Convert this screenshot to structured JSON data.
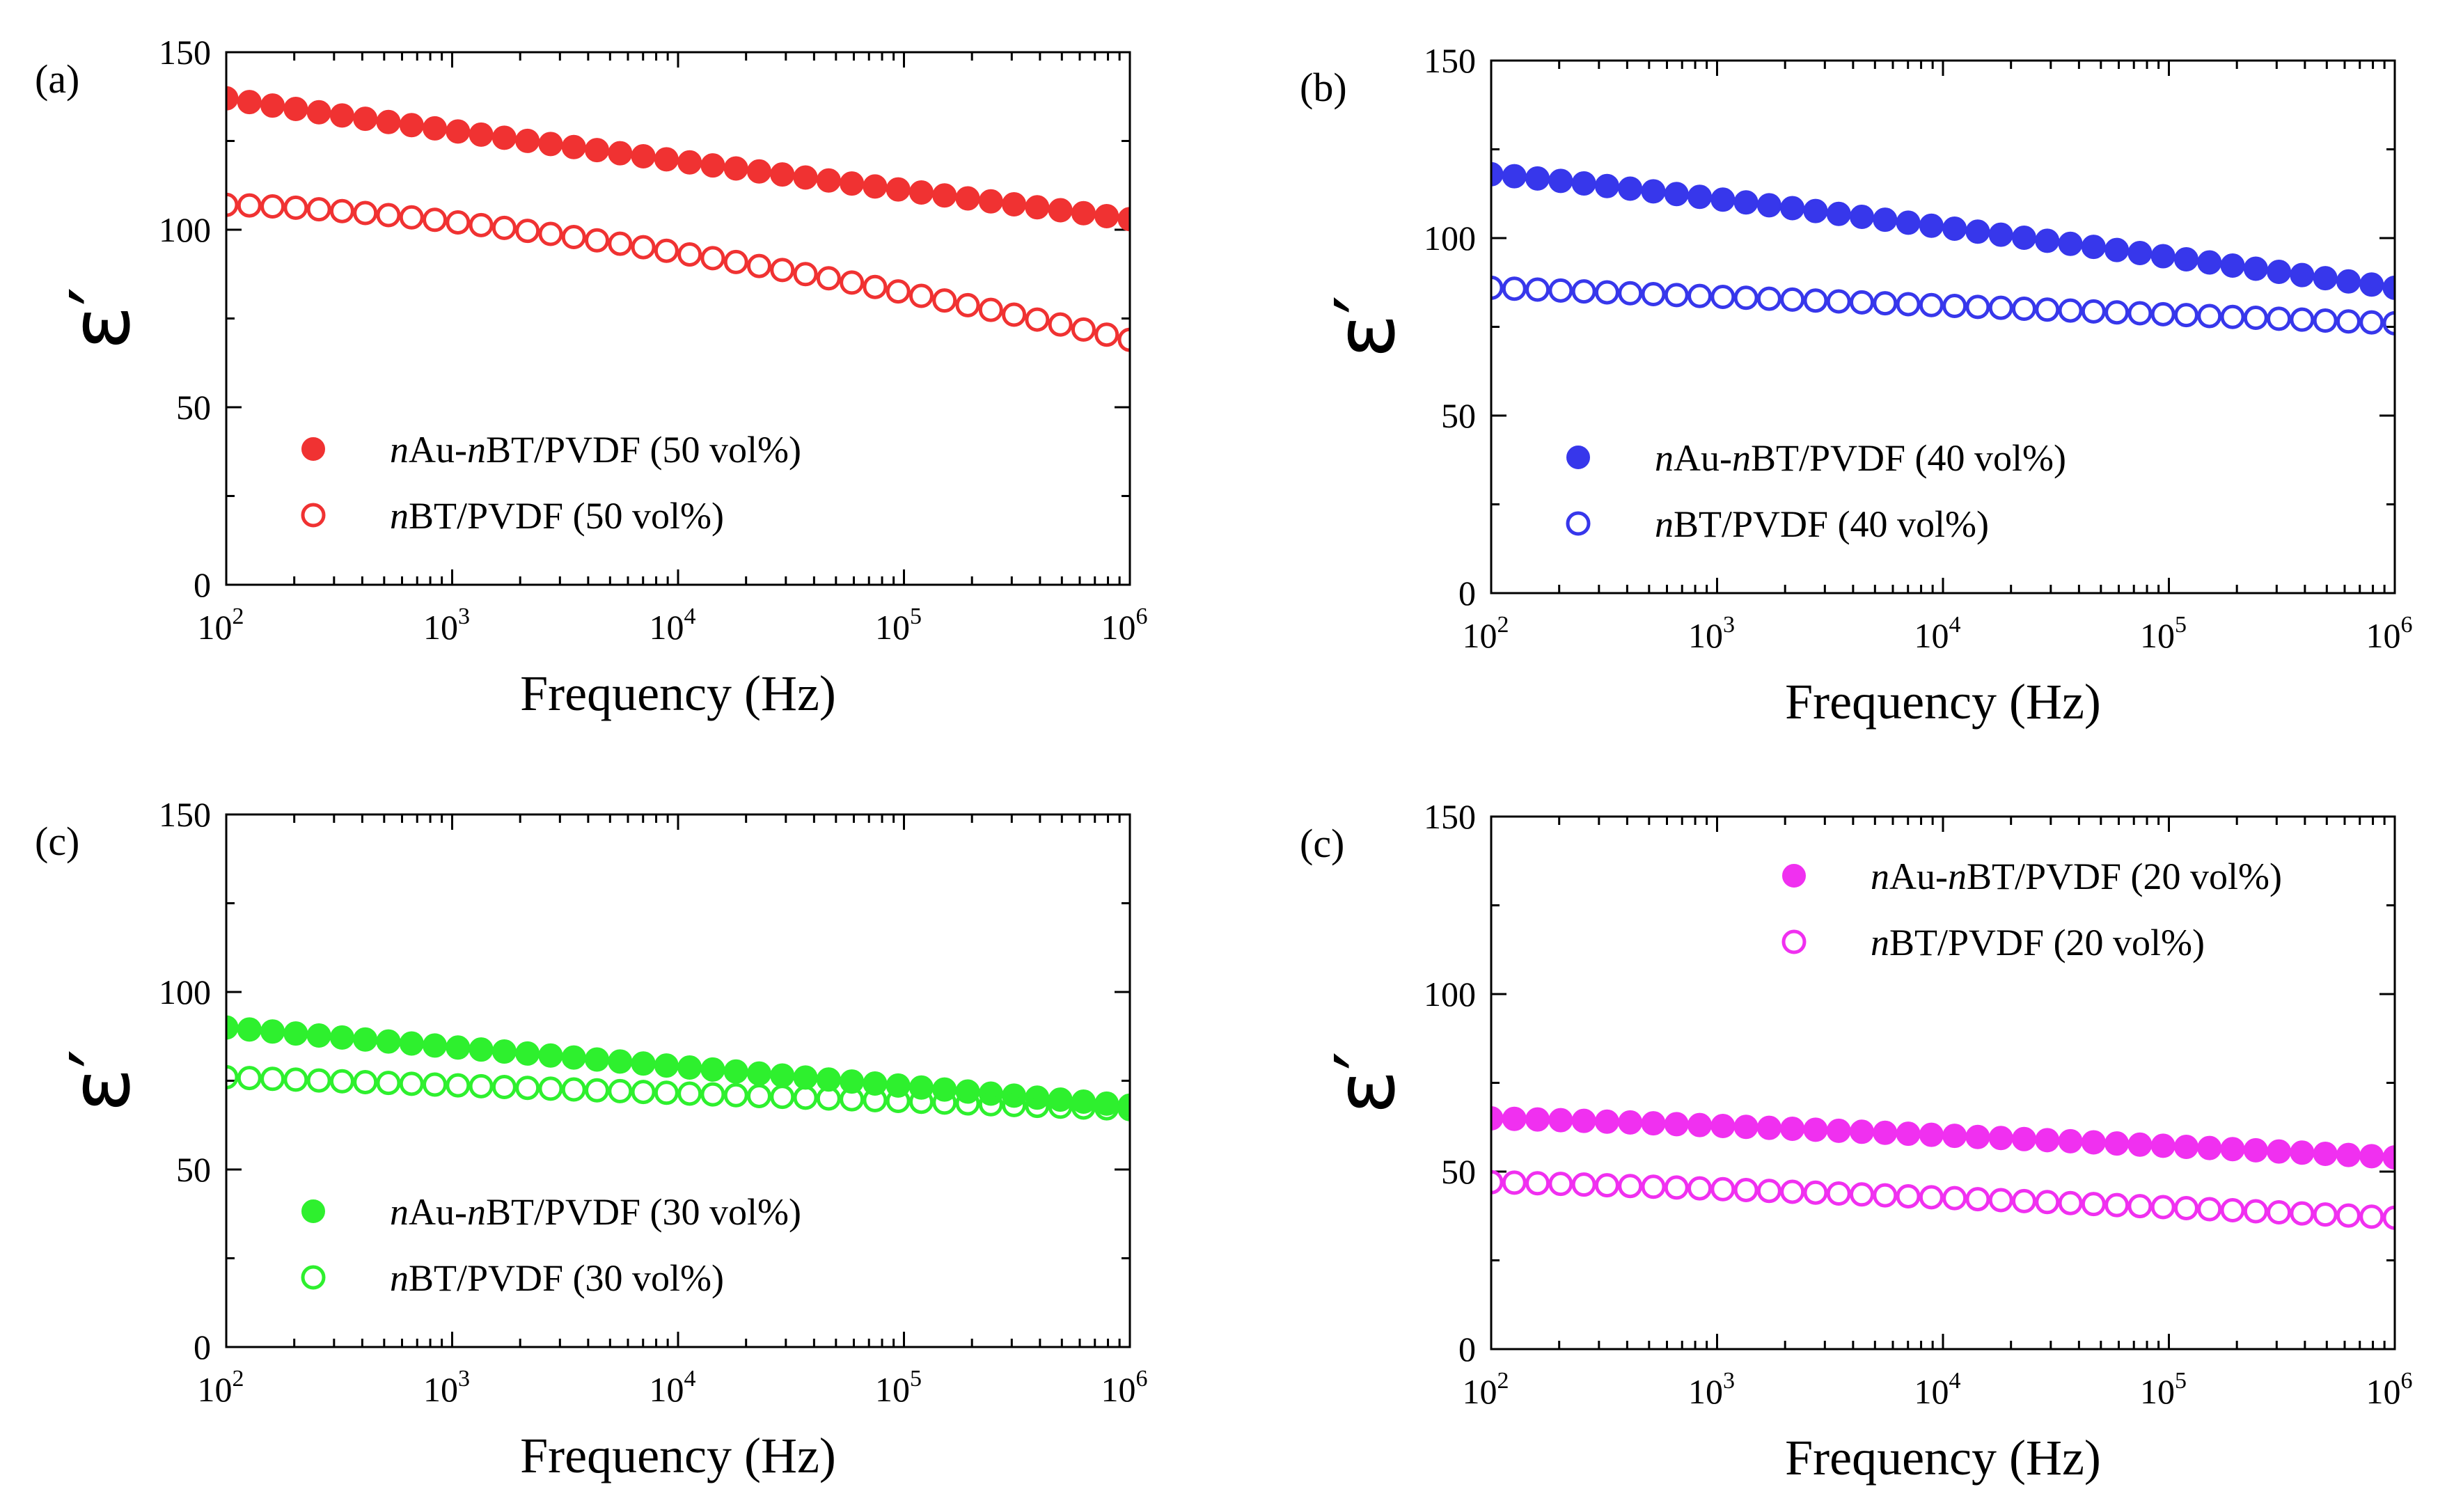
{
  "chart_data": [
    {
      "type": "scatter",
      "panel_label": "(a)",
      "xlabel": "Frequency (Hz)",
      "ylabel": "ε′",
      "xscale": "log",
      "xlim": [
        100,
        1000000
      ],
      "ylim": [
        0,
        150
      ],
      "yticks": [
        0,
        50,
        100,
        150
      ],
      "xtick_base": "10",
      "xtick_exponents": [
        "2",
        "3",
        "4",
        "5",
        "6"
      ],
      "color": "#f03232",
      "legend_position": "bottom-left",
      "series": [
        {
          "name": "nAu-nBT/PVDF (50 vol%)",
          "name_parts": [
            [
              "n",
              true
            ],
            [
              "Au-",
              false
            ],
            [
              "n",
              true
            ],
            [
              "BT/PVDF (50 vol%)",
              false
            ]
          ],
          "marker": "filled",
          "y_start": 137,
          "y_end": 103,
          "mid": 0.55,
          "curve": 0.95
        },
        {
          "name": "nBT/PVDF (50 vol%)",
          "name_parts": [
            [
              "n",
              true
            ],
            [
              "BT/PVDF (50 vol%)",
              false
            ]
          ],
          "marker": "open",
          "y_start": 107,
          "y_end": 69,
          "mid": 0.5,
          "curve": 1.5
        }
      ]
    },
    {
      "type": "scatter",
      "panel_label": "(b)",
      "xlabel": "Frequency (Hz)",
      "ylabel": "ε′",
      "xscale": "log",
      "xlim": [
        100,
        1000000
      ],
      "ylim": [
        0,
        150
      ],
      "yticks": [
        0,
        50,
        100,
        150
      ],
      "xtick_base": "10",
      "xtick_exponents": [
        "2",
        "3",
        "4",
        "5",
        "6"
      ],
      "color": "#3737eb",
      "legend_position": "bottom-left",
      "series": [
        {
          "name": "nAu-nBT/PVDF (40 vol%)",
          "name_parts": [
            [
              "n",
              true
            ],
            [
              "Au-",
              false
            ],
            [
              "n",
              true
            ],
            [
              "BT/PVDF (40 vol%)",
              false
            ]
          ],
          "marker": "filled",
          "y_start": 118,
          "y_end": 86,
          "mid": 0.55,
          "curve": 1.1
        },
        {
          "name": "nBT/PVDF (40 vol%)",
          "name_parts": [
            [
              "n",
              true
            ],
            [
              "BT/PVDF (40 vol%)",
              false
            ]
          ],
          "marker": "open",
          "y_start": 86,
          "y_end": 76,
          "mid": 0.5,
          "curve": 1.0
        }
      ]
    },
    {
      "type": "scatter",
      "panel_label": "(c)",
      "xlabel": "Frequency (Hz)",
      "ylabel": "ε′",
      "xscale": "log",
      "xlim": [
        100,
        1000000
      ],
      "ylim": [
        0,
        150
      ],
      "yticks": [
        0,
        50,
        100,
        150
      ],
      "xtick_base": "10",
      "xtick_exponents": [
        "2",
        "3",
        "4",
        "5",
        "6"
      ],
      "color": "#2ef02e",
      "legend_position": "bottom-left",
      "series": [
        {
          "name": "nAu-nBT/PVDF (30 vol%)",
          "name_parts": [
            [
              "n",
              true
            ],
            [
              "Au-",
              false
            ],
            [
              "n",
              true
            ],
            [
              "BT/PVDF (30 vol%)",
              false
            ]
          ],
          "marker": "filled",
          "y_start": 90,
          "y_end": 68,
          "mid": 0.5,
          "curve": 1.0
        },
        {
          "name": "nBT/PVDF (30 vol%)",
          "name_parts": [
            [
              "n",
              true
            ],
            [
              "BT/PVDF (30 vol%)",
              false
            ]
          ],
          "marker": "open",
          "y_start": 76,
          "y_end": 67,
          "mid": 0.5,
          "curve": 1.0
        }
      ]
    },
    {
      "type": "scatter",
      "panel_label": "(c)",
      "xlabel": "Frequency (Hz)",
      "ylabel": "ε′",
      "xscale": "log",
      "xlim": [
        100,
        1000000
      ],
      "ylim": [
        0,
        150
      ],
      "yticks": [
        0,
        50,
        100,
        150
      ],
      "xtick_base": "10",
      "xtick_exponents": [
        "2",
        "3",
        "4",
        "5",
        "6"
      ],
      "color": "#f030f0",
      "legend_position": "top-right",
      "series": [
        {
          "name": "nAu-nBT/PVDF (20 vol%)",
          "name_parts": [
            [
              "n",
              true
            ],
            [
              "Au-",
              false
            ],
            [
              "n",
              true
            ],
            [
              "BT/PVDF (20 vol%)",
              false
            ]
          ],
          "marker": "filled",
          "y_start": 65,
          "y_end": 54,
          "mid": 0.45,
          "curve": 1.2
        },
        {
          "name": "nBT/PVDF (20 vol%)",
          "name_parts": [
            [
              "n",
              true
            ],
            [
              "BT/PVDF (20 vol%)",
              false
            ]
          ],
          "marker": "open",
          "y_start": 47,
          "y_end": 37,
          "mid": 0.45,
          "curve": 1.2
        }
      ]
    }
  ]
}
